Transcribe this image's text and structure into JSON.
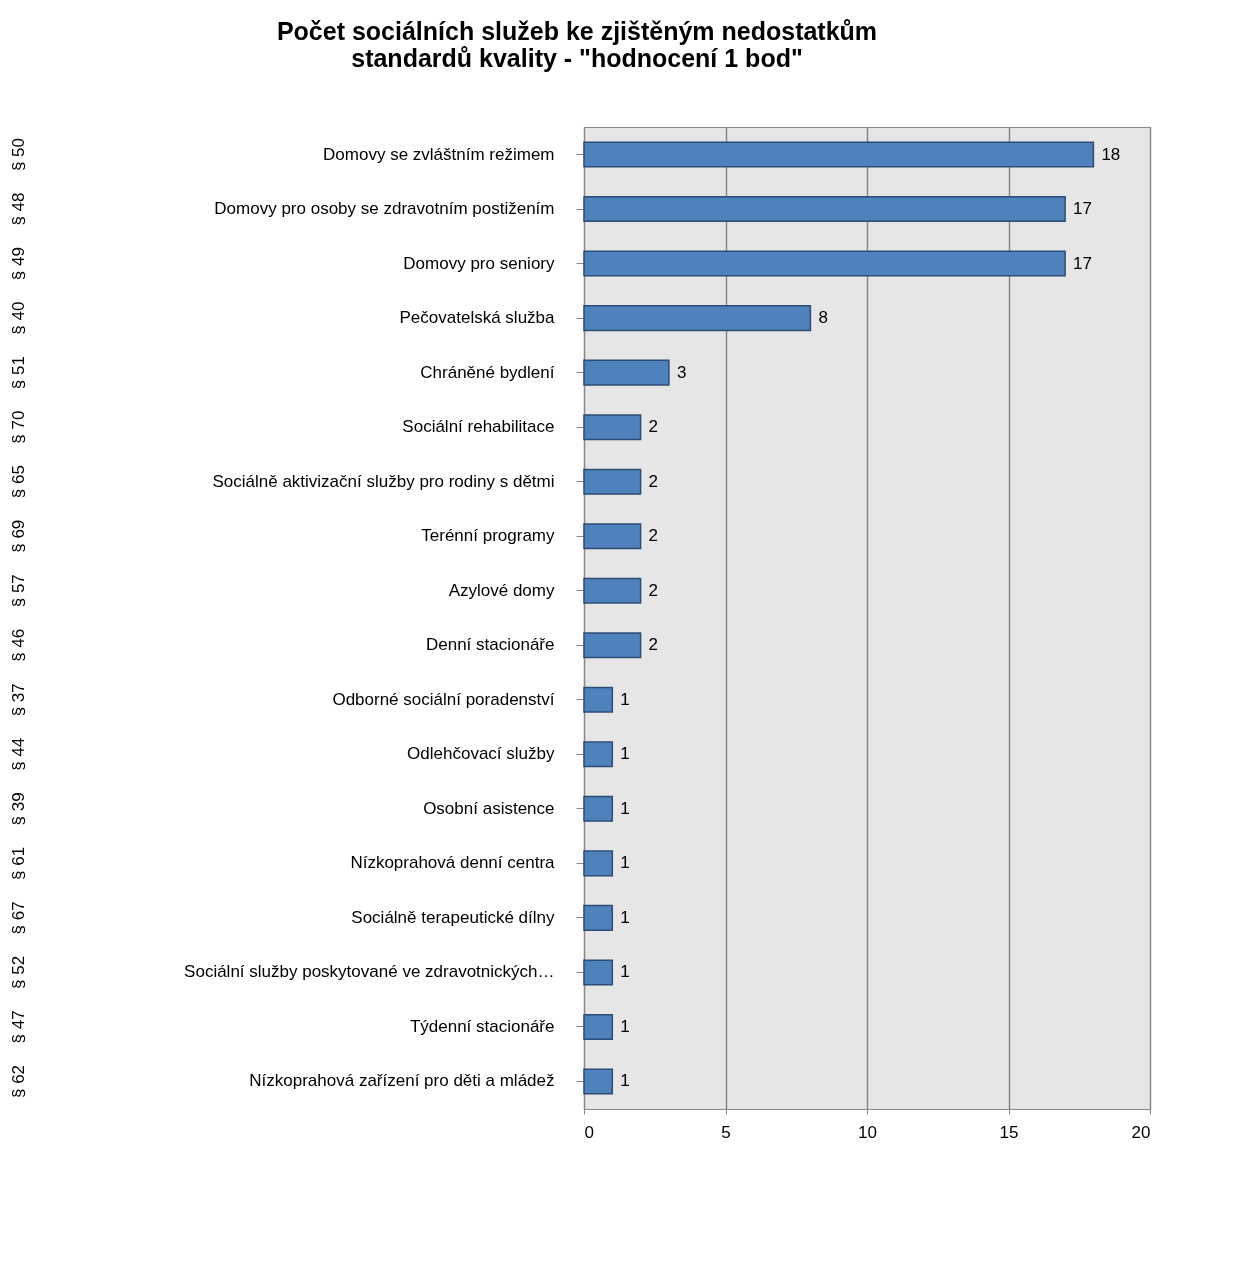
{
  "chart_data": {
    "type": "bar",
    "orientation": "horizontal",
    "title": "Počet sociálních služeb ke zjištěným nedostatkům standardů kvality - \"hodnocení 1 bod\"",
    "categories": [
      "Domovy se zvláštním režimem",
      "Domovy pro osoby se zdravotním postižením",
      "Domovy pro seniory",
      "Pečovatelská služba",
      "Chráněné bydlení",
      "Sociální rehabilitace",
      "Sociálně aktivizační služby pro rodiny s dětmi",
      "Terénní programy",
      "Azylové domy",
      "Denní stacionáře",
      "Odborné sociální poradenství",
      "Odlehčovací služby",
      "Osobní asistence",
      "Nízkoprahová denní centra",
      "Sociálně terapeutické dílny",
      "Sociální služby poskytované ve zdravotnických…",
      "Týdenní stacionáře",
      "Nízkoprahová zařízení pro děti a mládež"
    ],
    "values": [
      18,
      17,
      17,
      8,
      3,
      2,
      2,
      2,
      2,
      2,
      1,
      1,
      1,
      1,
      1,
      1,
      1,
      1
    ],
    "color": "#4f81bd",
    "xlim": [
      0,
      20
    ],
    "xticks": [
      0,
      5,
      10,
      15,
      20
    ],
    "grid": "x",
    "data_labels": true,
    "annotations": [
      "§ 50",
      "§ 48",
      "§ 49",
      "§ 40",
      "§ 51",
      "§ 70",
      "§ 65",
      "§ 69",
      "§ 57",
      "§ 46",
      "§ 37",
      "§ 44",
      "§ 39",
      "§ 61",
      "§ 67",
      "§ 52",
      "§ 47",
      "§ 62"
    ]
  }
}
